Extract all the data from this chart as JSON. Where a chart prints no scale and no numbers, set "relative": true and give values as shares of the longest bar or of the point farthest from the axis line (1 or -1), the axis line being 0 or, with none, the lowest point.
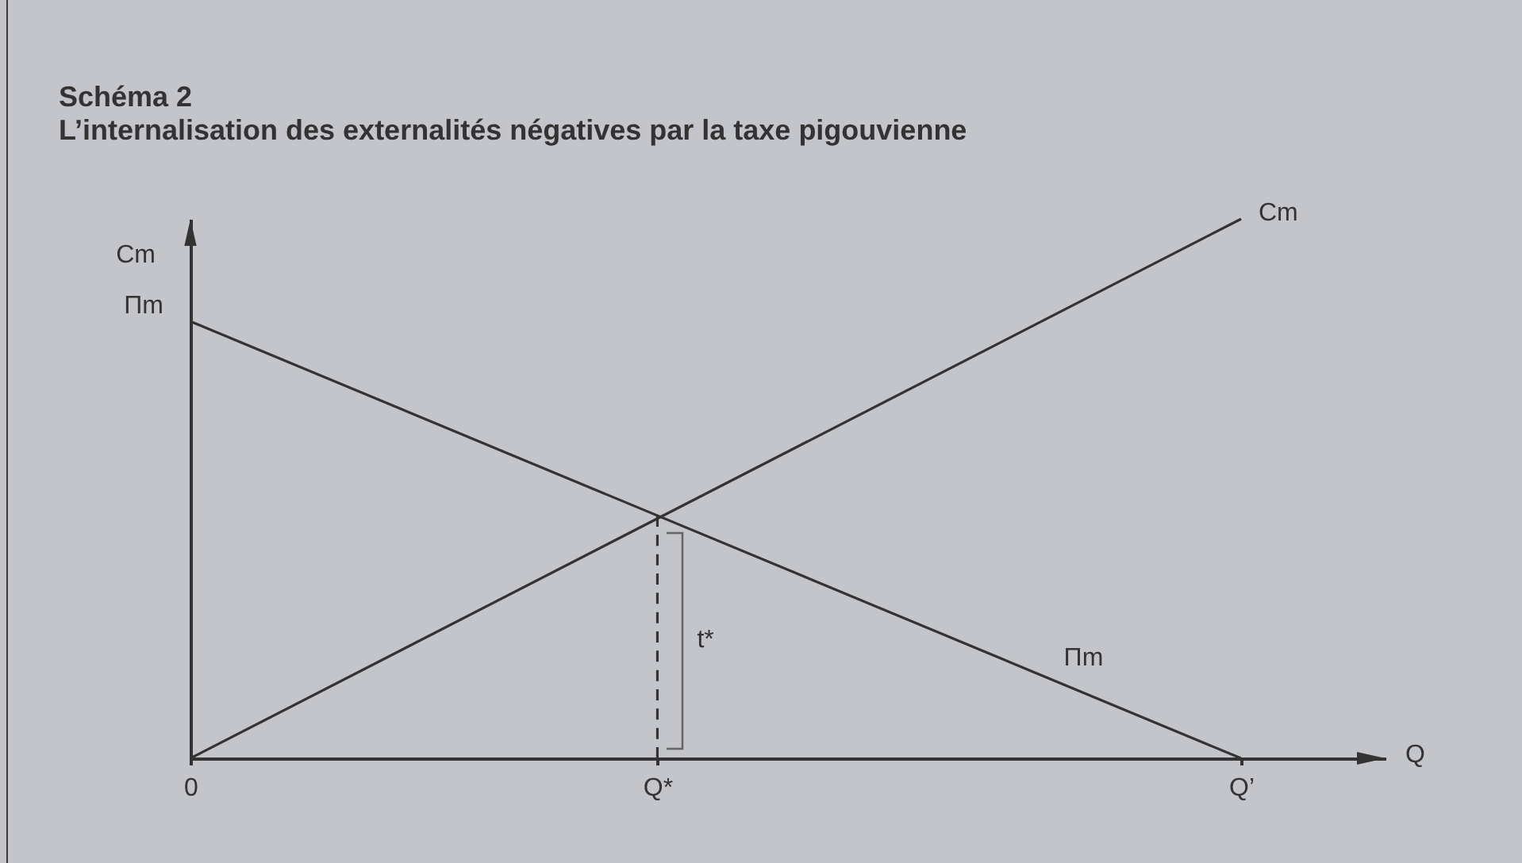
{
  "chart_data": {
    "type": "line",
    "title": "Schéma 2",
    "subtitle": "L’internalisation des externalités négatives par la taxe pigouvienne",
    "xlabel": "Q",
    "ylabel": "Cm",
    "relative": true,
    "categories": [
      "0",
      null,
      null,
      null,
      "Q*",
      null,
      null,
      null,
      null,
      "Q’"
    ],
    "series": [
      {
        "name": "Cm",
        "color": "#333333",
        "x": [
          "0",
          "Q’"
        ],
        "values": [
          0,
          1
        ]
      },
      {
        "name": "Πm",
        "color": "#333333",
        "x": [
          "0",
          "Q’"
        ],
        "values": [
          0.81,
          0
        ]
      },
      {
        "color": "#333333",
        "x": [
          "Q*",
          "Q*"
        ],
        "values": [
          0,
          0.45
        ],
        "line_style": "dashed"
      }
    ],
    "annotations": [
      {
        "text": "Πm",
        "x": "0",
        "y": 0.81
      },
      {
        "text": "t*",
        "x": "Q*",
        "y": 0.22
      }
    ]
  }
}
